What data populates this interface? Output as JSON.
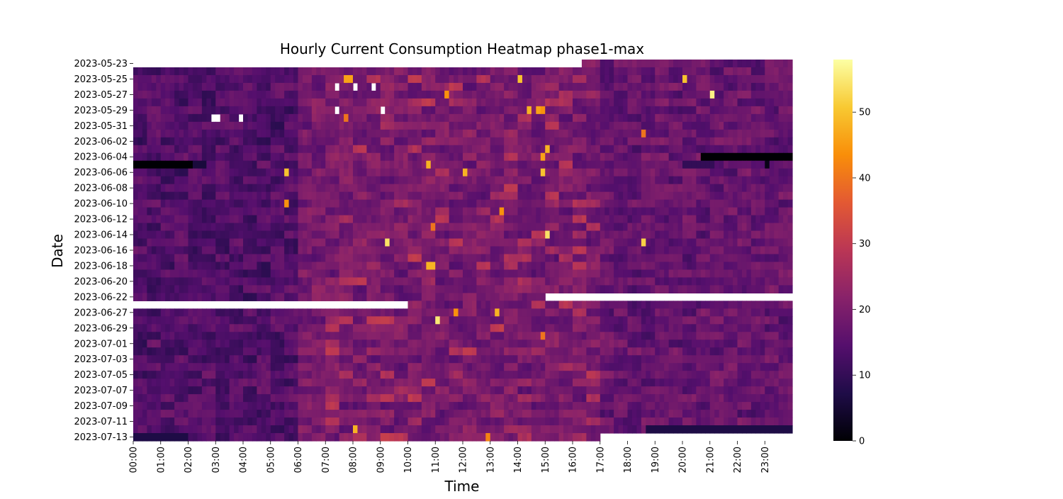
{
  "chart_data": {
    "type": "heatmap",
    "title": "Hourly Current Consumption Heatmap phase1-max",
    "xlabel": "Time",
    "ylabel": "Date",
    "colormap": "inferno",
    "colorbar": {
      "min": 0,
      "max": 58,
      "ticks": [
        0,
        10,
        20,
        30,
        40,
        50
      ]
    },
    "x_ticks": [
      "00:00",
      "01:00",
      "02:00",
      "03:00",
      "04:00",
      "05:00",
      "06:00",
      "07:00",
      "08:00",
      "09:00",
      "10:00",
      "11:00",
      "12:00",
      "13:00",
      "14:00",
      "15:00",
      "16:00",
      "17:00",
      "18:00",
      "19:00",
      "20:00",
      "21:00",
      "22:00",
      "23:00"
    ],
    "y_ticks": [
      "2023-05-23",
      "2023-05-25",
      "2023-05-27",
      "2023-05-29",
      "2023-05-31",
      "2023-06-02",
      "2023-06-04",
      "2023-06-06",
      "2023-06-08",
      "2023-06-10",
      "2023-06-12",
      "2023-06-14",
      "2023-06-16",
      "2023-06-18",
      "2023-06-20",
      "2023-06-22",
      "2023-06-27",
      "2023-06-29",
      "2023-07-01",
      "2023-07-03",
      "2023-07-05",
      "2023-07-07",
      "2023-07-09",
      "2023-07-11",
      "2023-07-13"
    ],
    "rows": [
      "2023-05-23",
      "2023-05-24",
      "2023-05-25",
      "2023-05-26",
      "2023-05-27",
      "2023-05-28",
      "2023-05-29",
      "2023-05-30",
      "2023-05-31",
      "2023-06-01",
      "2023-06-02",
      "2023-06-03",
      "2023-06-04",
      "2023-06-05",
      "2023-06-06",
      "2023-06-07",
      "2023-06-08",
      "2023-06-09",
      "2023-06-10",
      "2023-06-11",
      "2023-06-12",
      "2023-06-13",
      "2023-06-14",
      "2023-06-15",
      "2023-06-16",
      "2023-06-17",
      "2023-06-18",
      "2023-06-19",
      "2023-06-20",
      "2023-06-21",
      "2023-06-22",
      "2023-06-26",
      "2023-06-27",
      "2023-06-28",
      "2023-06-29",
      "2023-06-30",
      "2023-07-01",
      "2023-07-02",
      "2023-07-03",
      "2023-07-04",
      "2023-07-05",
      "2023-07-06",
      "2023-07-07",
      "2023-07-08",
      "2023-07-09",
      "2023-07-10",
      "2023-07-11",
      "2023-07-12",
      "2023-07-13"
    ],
    "intervals_per_hour": 6,
    "base_levels": {
      "night": 14,
      "day": 19,
      "evening": 17
    },
    "no_data": [
      {
        "date": "2023-05-23",
        "from": "00:00",
        "to": "16:20"
      },
      {
        "date": "2023-05-26",
        "from": "07:20",
        "to": "07:30"
      },
      {
        "date": "2023-05-26",
        "from": "08:00",
        "to": "08:10"
      },
      {
        "date": "2023-05-26",
        "from": "08:40",
        "to": "08:50"
      },
      {
        "date": "2023-05-29",
        "from": "07:20",
        "to": "07:30"
      },
      {
        "date": "2023-05-29",
        "from": "09:00",
        "to": "09:10"
      },
      {
        "date": "2023-05-30",
        "from": "02:50",
        "to": "03:10"
      },
      {
        "date": "2023-05-30",
        "from": "03:50",
        "to": "04:00"
      },
      {
        "date": "2023-06-22",
        "from": "15:00",
        "to": "24:00"
      },
      {
        "date": "2023-06-26",
        "from": "00:00",
        "to": "10:00"
      },
      {
        "date": "2023-07-13",
        "from": "17:00",
        "to": "24:00"
      }
    ],
    "low_values": [
      {
        "date": "2023-06-04",
        "from": "20:40",
        "to": "24:00",
        "value": 0
      },
      {
        "date": "2023-06-05",
        "from": "00:00",
        "to": "02:10",
        "value": 0
      },
      {
        "date": "2023-06-05",
        "from": "02:10",
        "to": "02:40",
        "value": 6
      },
      {
        "date": "2023-06-05",
        "from": "20:00",
        "to": "21:10",
        "value": 10
      },
      {
        "date": "2023-06-05",
        "from": "23:00",
        "to": "23:10",
        "value": 2
      },
      {
        "date": "2023-07-12",
        "from": "18:40",
        "to": "24:00",
        "value": 7
      },
      {
        "date": "2023-07-13",
        "from": "00:00",
        "to": "02:00",
        "value": 7
      }
    ],
    "hot_spots": [
      {
        "date": "2023-05-25",
        "time": "07:40",
        "value": 46
      },
      {
        "date": "2023-05-25",
        "time": "07:50",
        "value": 46
      },
      {
        "date": "2023-05-25",
        "time": "14:00",
        "value": 50
      },
      {
        "date": "2023-05-25",
        "time": "20:00",
        "value": 50
      },
      {
        "date": "2023-05-27",
        "time": "11:20",
        "value": 44
      },
      {
        "date": "2023-05-27",
        "time": "21:00",
        "value": 56
      },
      {
        "date": "2023-05-29",
        "time": "14:20",
        "value": 48
      },
      {
        "date": "2023-05-29",
        "time": "14:40",
        "value": 46
      },
      {
        "date": "2023-05-29",
        "time": "14:50",
        "value": 44
      },
      {
        "date": "2023-05-30",
        "time": "07:40",
        "value": 40
      },
      {
        "date": "2023-06-01",
        "time": "18:30",
        "value": 40
      },
      {
        "date": "2023-06-03",
        "time": "15:00",
        "value": 48
      },
      {
        "date": "2023-06-04",
        "time": "14:50",
        "value": 46
      },
      {
        "date": "2023-06-05",
        "time": "10:40",
        "value": 48
      },
      {
        "date": "2023-06-06",
        "time": "05:30",
        "value": 50
      },
      {
        "date": "2023-06-06",
        "time": "12:00",
        "value": 48
      },
      {
        "date": "2023-06-06",
        "time": "14:50",
        "value": 50
      },
      {
        "date": "2023-06-10",
        "time": "05:30",
        "value": 44
      },
      {
        "date": "2023-06-11",
        "time": "13:20",
        "value": 44
      },
      {
        "date": "2023-06-13",
        "time": "10:50",
        "value": 40
      },
      {
        "date": "2023-06-14",
        "time": "15:00",
        "value": 54
      },
      {
        "date": "2023-06-15",
        "time": "09:10",
        "value": 54
      },
      {
        "date": "2023-06-15",
        "time": "18:30",
        "value": 52
      },
      {
        "date": "2023-06-18",
        "time": "10:40",
        "value": 48
      },
      {
        "date": "2023-06-18",
        "time": "10:50",
        "value": 48
      },
      {
        "date": "2023-06-27",
        "time": "11:40",
        "value": 44
      },
      {
        "date": "2023-06-27",
        "time": "13:10",
        "value": 48
      },
      {
        "date": "2023-06-28",
        "time": "11:00",
        "value": 55
      },
      {
        "date": "2023-06-30",
        "time": "14:50",
        "value": 40
      },
      {
        "date": "2023-07-12",
        "time": "08:00",
        "value": 48
      },
      {
        "date": "2023-07-13",
        "time": "12:50",
        "value": 42
      }
    ]
  }
}
